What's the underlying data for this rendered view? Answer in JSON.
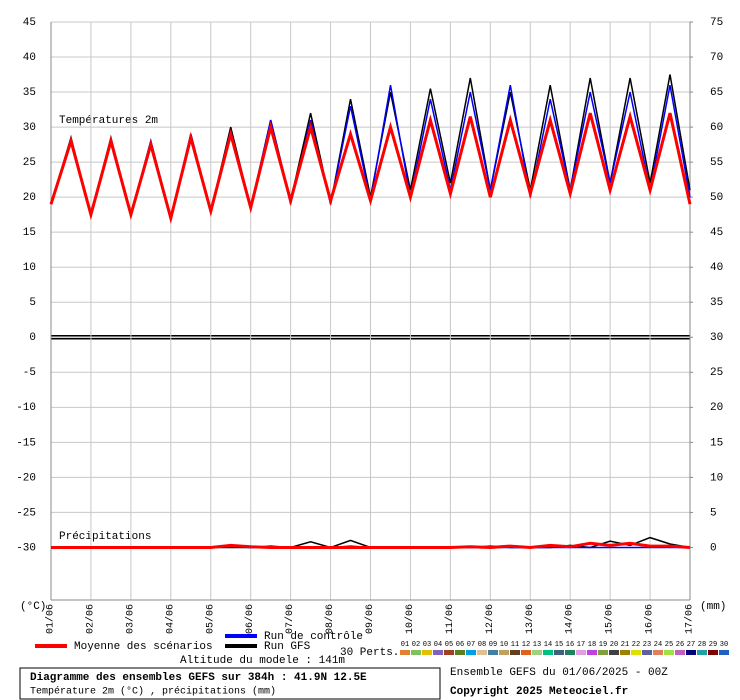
{
  "chart_data": {
    "type": "line",
    "title": "Diagramme des ensembles GEFS sur 384h : 41.9N 12.5E",
    "subtitle": "Température 2m (°C) , précipitations (mm)",
    "temp_label": "Températures 2m",
    "precip_label": "Précipitations",
    "y_label": "(°C)",
    "y2_label": "(mm)",
    "altitude": "Altitude du modele : 141m",
    "run_info": "Ensemble GEFS du 01/06/2025 - 00Z",
    "copyright": "Copyright 2025 Meteociel.fr",
    "categories": [
      "01/06",
      null,
      "02/06",
      null,
      "03/06",
      null,
      "04/06",
      null,
      "05/06",
      null,
      "06/06",
      null,
      "07/06",
      null,
      "08/06",
      null,
      "09/06",
      null,
      "10/06",
      null,
      "11/06",
      null,
      "12/06",
      null,
      "13/06",
      null,
      "14/06",
      null,
      "15/06",
      null,
      "16/06",
      null,
      "17/06"
    ],
    "ylim": [
      -37.5,
      45
    ],
    "yticks": [
      -30,
      -25,
      -20,
      -15,
      -10,
      -5,
      0,
      5,
      10,
      15,
      20,
      25,
      30,
      35,
      40,
      45
    ],
    "y2lim": [
      -7.5,
      75
    ],
    "y2ticks": [
      0,
      5,
      10,
      15,
      20,
      25,
      30,
      35,
      40,
      45,
      50,
      55,
      60,
      65,
      70,
      75
    ],
    "grid": true,
    "series": [
      {
        "name": "Run GFS",
        "color": "#000000",
        "axis": "y",
        "values": [
          19,
          28.5,
          17.5,
          28.5,
          17.5,
          28,
          17,
          29,
          18,
          30,
          18.5,
          31,
          19.5,
          32,
          19,
          34,
          20,
          35,
          21,
          35.5,
          22,
          37,
          21,
          35,
          21,
          36,
          21,
          37,
          22,
          37,
          22,
          37.5,
          21
        ]
      },
      {
        "name": "Run de contrôle",
        "color": "#0000ff",
        "axis": "y",
        "values": [
          19,
          28,
          17.5,
          28,
          17.5,
          28,
          17,
          29,
          18,
          29.5,
          18.5,
          31,
          19,
          31,
          19,
          33,
          19.5,
          36,
          20,
          34,
          21,
          35,
          21,
          36,
          20,
          34,
          21,
          35,
          22,
          35,
          21,
          36,
          20
        ]
      },
      {
        "name": "Moyenne des scénarios",
        "color": "#ff0000",
        "axis": "y",
        "values": [
          19,
          28,
          17.5,
          28,
          17.5,
          27.5,
          17,
          28.5,
          18,
          29,
          18.5,
          30,
          19.5,
          30,
          19.5,
          29,
          19.5,
          30,
          20,
          31,
          20.5,
          31.5,
          20,
          31,
          20.5,
          31,
          20.5,
          32,
          21,
          31.5,
          21,
          32,
          19
        ]
      },
      {
        "name": "Run GFS",
        "color": "#000000",
        "axis": "y2",
        "values": [
          0,
          0,
          0,
          0,
          0,
          0,
          0,
          0,
          0,
          0,
          0,
          0.2,
          0,
          0.8,
          0,
          1.0,
          0,
          0,
          0,
          0,
          0,
          0,
          0.2,
          0,
          0,
          0,
          0.3,
          0,
          0.9,
          0.3,
          1.4,
          0.5,
          0
        ]
      },
      {
        "name": "Run de contrôle",
        "color": "#0000ff",
        "axis": "y2",
        "values": [
          0,
          0,
          0,
          0,
          0,
          0,
          0,
          0,
          0,
          0.1,
          0,
          0,
          0,
          0,
          0,
          0.2,
          0,
          0,
          0,
          0,
          0,
          0,
          0,
          0,
          0,
          0,
          0,
          0,
          0,
          0,
          0,
          0,
          0
        ]
      },
      {
        "name": "Moyenne des scénarios",
        "color": "#ff0000",
        "axis": "y2",
        "values": [
          0,
          0,
          0,
          0,
          0,
          0,
          0,
          0,
          0,
          0.3,
          0.1,
          0,
          0,
          0,
          0,
          0,
          0,
          0,
          0,
          0,
          0,
          0.1,
          0,
          0.2,
          0,
          0.3,
          0.1,
          0.6,
          0.3,
          0.6,
          0.2,
          0.2,
          0
        ]
      }
    ],
    "perturbations": {
      "label": "30 Perts.",
      "items": [
        {
          "name": "01",
          "color": "#e08030"
        },
        {
          "name": "02",
          "color": "#80c060"
        },
        {
          "name": "03",
          "color": "#e0c000"
        },
        {
          "name": "04",
          "color": "#8060c0"
        },
        {
          "name": "05",
          "color": "#a04020"
        },
        {
          "name": "06",
          "color": "#608020"
        },
        {
          "name": "07",
          "color": "#00a0e0"
        },
        {
          "name": "08",
          "color": "#e0c090"
        },
        {
          "name": "09",
          "color": "#4080a0"
        },
        {
          "name": "10",
          "color": "#c0a060"
        },
        {
          "name": "11",
          "color": "#604020"
        },
        {
          "name": "12",
          "color": "#e06020"
        },
        {
          "name": "13",
          "color": "#a0d080"
        },
        {
          "name": "14",
          "color": "#00c080"
        },
        {
          "name": "15",
          "color": "#406080"
        },
        {
          "name": "16",
          "color": "#208060"
        },
        {
          "name": "17",
          "color": "#e0a0e0"
        },
        {
          "name": "18",
          "color": "#c040e0"
        },
        {
          "name": "19",
          "color": "#80a040"
        },
        {
          "name": "20",
          "color": "#404040"
        },
        {
          "name": "21",
          "color": "#a08000"
        },
        {
          "name": "22",
          "color": "#e0e000"
        },
        {
          "name": "23",
          "color": "#6060a0"
        },
        {
          "name": "24",
          "color": "#e08060"
        },
        {
          "name": "25",
          "color": "#a0e040"
        },
        {
          "name": "26",
          "color": "#c060c0"
        },
        {
          "name": "27",
          "color": "#000080"
        },
        {
          "name": "28",
          "color": "#20a0a0"
        },
        {
          "name": "29",
          "color": "#800000"
        },
        {
          "name": "30",
          "color": "#2060c0"
        }
      ]
    }
  }
}
